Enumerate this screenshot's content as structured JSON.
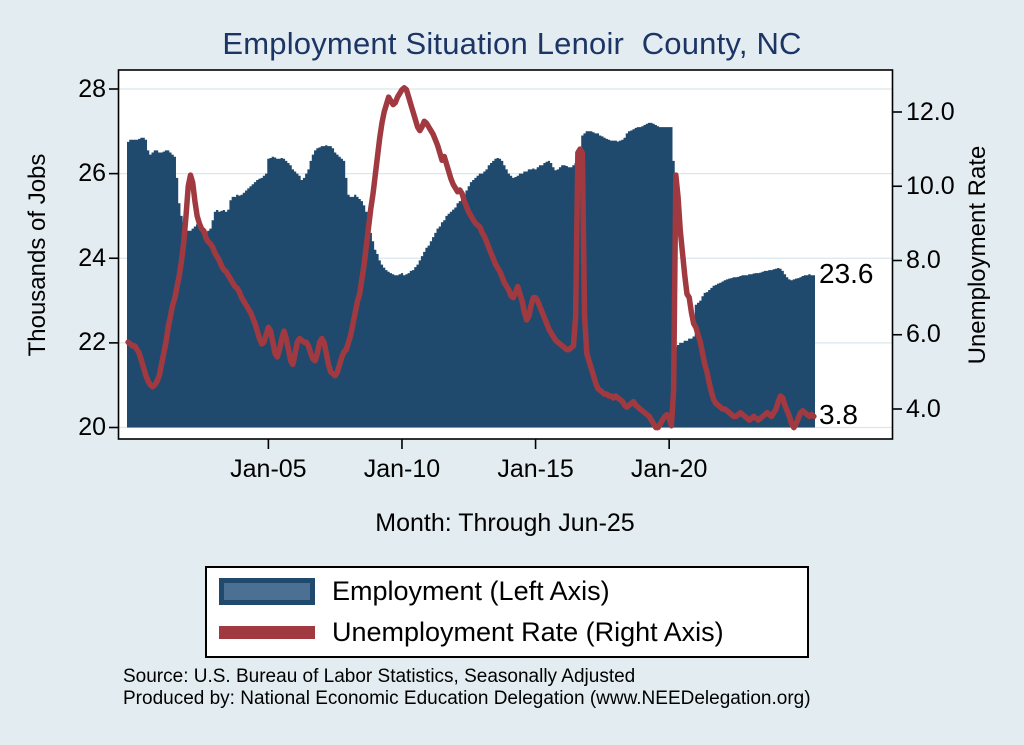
{
  "title": "Employment Situation Lenoir  County, NC",
  "month_caption": "Month: Through Jun-25",
  "end_labels": {
    "employment": "23.6",
    "unemployment": "3.8"
  },
  "legend": {
    "items": [
      {
        "label": "Employment (Left Axis)",
        "swatch": "bar"
      },
      {
        "label": "Unemployment Rate (Right Axis)",
        "swatch": "line"
      }
    ]
  },
  "source_line1": "Source: U.S. Bureau of Labor Statistics, Seasonally Adjusted",
  "source_line2": "Produced by: National Economic Education Delegation (www.NEEDelegation.org)",
  "colors": {
    "background": "#E3EDF1",
    "plot_background": "#FFFFFF",
    "gridline": "#DAE7ED",
    "bar_fill": "#1F4A6E",
    "bar_swatch_inner": "#4C7094",
    "line_stroke": "#A03A40",
    "title_text": "#1C3565",
    "axis_text": "#000000"
  },
  "chart_data": {
    "type": "combo",
    "frequency": "monthly",
    "x_start": "Oct-1999",
    "x_end": "Jun-25",
    "left_axis": {
      "title": "Thousands of Jobs",
      "range": [
        20,
        28
      ],
      "ticks": [
        {
          "v": 20,
          "label": "20"
        },
        {
          "v": 22,
          "label": "22"
        },
        {
          "v": 24,
          "label": "24"
        },
        {
          "v": 26,
          "label": "26"
        },
        {
          "v": 28,
          "label": "28"
        }
      ]
    },
    "right_axis": {
      "title": "Unemployment Rate",
      "range": [
        4,
        12
      ],
      "ticks": [
        {
          "v": 4,
          "label": "4.0"
        },
        {
          "v": 6,
          "label": "6.0"
        },
        {
          "v": 8,
          "label": "8.0"
        },
        {
          "v": 10,
          "label": "10.0"
        },
        {
          "v": 12,
          "label": "12.0"
        }
      ]
    },
    "x_axis": {
      "ticks": [
        {
          "index": 63,
          "label": "Jan-05"
        },
        {
          "index": 123,
          "label": "Jan-10"
        },
        {
          "index": 183,
          "label": "Jan-15"
        },
        {
          "index": 243,
          "label": "Jan-20"
        }
      ]
    },
    "series": [
      {
        "name": "Employment (Left Axis)",
        "type": "bar",
        "axis": "left",
        "values": [
          26.75,
          26.8,
          26.8,
          26.8,
          26.8,
          26.82,
          26.85,
          26.85,
          26.8,
          26.55,
          26.45,
          26.5,
          26.55,
          26.55,
          26.5,
          26.5,
          26.52,
          26.55,
          26.55,
          26.5,
          26.45,
          26.4,
          25.9,
          25.3,
          25.0,
          24.85,
          24.7,
          24.65,
          24.65,
          24.7,
          24.75,
          24.8,
          24.75,
          24.7,
          24.62,
          24.6,
          24.65,
          24.7,
          24.9,
          25.1,
          25.14,
          25.1,
          25.12,
          25.14,
          25.1,
          25.15,
          25.37,
          25.45,
          25.45,
          25.5,
          25.48,
          25.5,
          25.55,
          25.6,
          25.65,
          25.7,
          25.75,
          25.8,
          25.85,
          25.88,
          25.9,
          25.95,
          26.0,
          26.35,
          26.37,
          26.4,
          26.38,
          26.35,
          26.35,
          26.37,
          26.35,
          26.3,
          26.25,
          26.2,
          26.1,
          26.05,
          26.0,
          25.95,
          25.85,
          25.9,
          26.0,
          26.1,
          26.3,
          26.45,
          26.55,
          26.6,
          26.62,
          26.65,
          26.65,
          26.67,
          26.65,
          26.65,
          26.6,
          26.5,
          26.45,
          26.4,
          26.35,
          26.3,
          25.9,
          25.5,
          25.45,
          25.45,
          25.5,
          25.45,
          25.4,
          25.35,
          25.25,
          25.1,
          24.9,
          24.6,
          24.4,
          24.2,
          24.1,
          23.95,
          23.85,
          23.78,
          23.72,
          23.68,
          23.65,
          23.62,
          23.6,
          23.6,
          23.62,
          23.65,
          23.6,
          23.62,
          23.65,
          23.7,
          23.72,
          23.79,
          23.85,
          23.95,
          24.05,
          24.15,
          24.25,
          24.3,
          24.4,
          24.5,
          24.6,
          24.7,
          24.75,
          24.85,
          24.9,
          25.0,
          25.05,
          25.1,
          25.15,
          25.2,
          25.3,
          25.35,
          25.45,
          25.5,
          25.6,
          25.7,
          25.8,
          25.85,
          25.9,
          25.95,
          26.0,
          26.0,
          26.05,
          26.1,
          26.2,
          26.25,
          26.3,
          26.35,
          26.37,
          26.35,
          26.3,
          26.2,
          26.1,
          26.0,
          25.95,
          25.9,
          25.92,
          25.95,
          26.0,
          26.0,
          26.05,
          26.05,
          26.1,
          26.1,
          26.12,
          26.1,
          26.15,
          26.2,
          26.2,
          26.25,
          26.28,
          26.3,
          26.25,
          26.15,
          26.08,
          26.1,
          26.15,
          26.2,
          26.2,
          26.18,
          26.15,
          26.15,
          26.2,
          26.25,
          26.3,
          26.5,
          26.9,
          26.95,
          27.0,
          27.0,
          27.0,
          26.98,
          26.95,
          26.95,
          26.9,
          26.88,
          26.85,
          26.82,
          26.8,
          26.78,
          26.78,
          26.78,
          26.76,
          26.78,
          26.8,
          26.85,
          26.95,
          27.0,
          27.02,
          27.05,
          27.08,
          27.1,
          27.1,
          27.12,
          27.15,
          27.18,
          27.2,
          27.2,
          27.18,
          27.15,
          27.12,
          27.1,
          27.1,
          27.1,
          27.1,
          27.1,
          27.1,
          26.3,
          21.9,
          21.95,
          22.0,
          22.0,
          22.05,
          22.05,
          22.1,
          22.1,
          22.15,
          22.9,
          22.95,
          23.0,
          23.1,
          23.18,
          23.2,
          23.25,
          23.3,
          23.35,
          23.37,
          23.4,
          23.42,
          23.45,
          23.48,
          23.5,
          23.52,
          23.53,
          23.55,
          23.55,
          23.56,
          23.58,
          23.6,
          23.6,
          23.6,
          23.62,
          23.62,
          23.64,
          23.65,
          23.65,
          23.66,
          23.68,
          23.7,
          23.7,
          23.72,
          23.72,
          23.74,
          23.75,
          23.77,
          23.75,
          23.7,
          23.62,
          23.55,
          23.5,
          23.48,
          23.5,
          23.52,
          23.53,
          23.55,
          23.58,
          23.6,
          23.6,
          23.62,
          23.6,
          23.6
        ]
      },
      {
        "name": "Unemployment Rate (Right Axis)",
        "type": "line",
        "axis": "right",
        "values": [
          5.8,
          5.75,
          5.7,
          5.7,
          5.6,
          5.5,
          5.3,
          5.1,
          4.9,
          4.75,
          4.65,
          4.6,
          4.65,
          4.75,
          4.9,
          5.2,
          5.5,
          5.8,
          6.2,
          6.5,
          6.8,
          7.0,
          7.3,
          7.6,
          8.0,
          8.5,
          9.2,
          10.0,
          10.3,
          10.1,
          9.6,
          9.2,
          9.0,
          8.85,
          8.8,
          8.6,
          8.5,
          8.45,
          8.35,
          8.2,
          8.1,
          8.0,
          7.85,
          7.75,
          7.7,
          7.6,
          7.5,
          7.4,
          7.3,
          7.25,
          7.15,
          7.0,
          6.9,
          6.8,
          6.7,
          6.6,
          6.45,
          6.3,
          6.1,
          5.9,
          5.75,
          5.8,
          6.0,
          6.2,
          6.1,
          5.8,
          5.5,
          5.4,
          5.6,
          5.9,
          6.1,
          5.9,
          5.6,
          5.3,
          5.2,
          5.5,
          5.8,
          5.9,
          5.85,
          5.8,
          5.8,
          5.7,
          5.5,
          5.35,
          5.3,
          5.5,
          5.8,
          5.9,
          5.8,
          5.5,
          5.2,
          5.0,
          4.95,
          4.9,
          5.0,
          5.2,
          5.4,
          5.55,
          5.6,
          5.8,
          6.0,
          6.3,
          6.6,
          6.9,
          7.1,
          7.5,
          7.9,
          8.4,
          8.9,
          9.4,
          9.8,
          10.3,
          10.8,
          11.3,
          11.7,
          12.0,
          12.2,
          12.4,
          12.3,
          12.2,
          12.25,
          12.4,
          12.5,
          12.6,
          12.65,
          12.6,
          12.4,
          12.2,
          12.0,
          11.8,
          11.6,
          11.5,
          11.6,
          11.75,
          11.7,
          11.6,
          11.5,
          11.4,
          11.25,
          11.1,
          10.9,
          10.7,
          10.8,
          10.6,
          10.4,
          10.2,
          10.05,
          9.95,
          9.85,
          9.9,
          9.8,
          9.6,
          9.45,
          9.3,
          9.2,
          9.1,
          9.0,
          8.95,
          8.9,
          8.75,
          8.65,
          8.5,
          8.35,
          8.2,
          8.05,
          7.9,
          7.8,
          7.7,
          7.55,
          7.4,
          7.3,
          7.2,
          7.05,
          7.0,
          7.15,
          7.3,
          7.1,
          6.9,
          6.6,
          6.4,
          6.5,
          6.8,
          7.0,
          7.0,
          6.9,
          6.75,
          6.6,
          6.45,
          6.3,
          6.15,
          6.05,
          5.95,
          5.85,
          5.8,
          5.75,
          5.7,
          5.65,
          5.6,
          5.6,
          5.65,
          5.7,
          6.5,
          10.9,
          11.0,
          10.9,
          6.5,
          5.5,
          5.3,
          5.1,
          4.9,
          4.7,
          4.55,
          4.5,
          4.45,
          4.4,
          4.4,
          4.35,
          4.35,
          4.3,
          4.35,
          4.3,
          4.25,
          4.2,
          4.1,
          4.05,
          4.1,
          4.15,
          4.2,
          4.1,
          4.05,
          4.0,
          3.95,
          3.9,
          3.85,
          3.8,
          3.7,
          3.6,
          3.5,
          3.5,
          3.6,
          3.7,
          3.8,
          3.85,
          3.75,
          3.55,
          4.5,
          10.3,
          9.7,
          8.8,
          8.2,
          7.6,
          7.1,
          7.0,
          6.6,
          6.3,
          6.2,
          6.0,
          5.8,
          5.5,
          5.2,
          5.0,
          4.7,
          4.45,
          4.25,
          4.15,
          4.1,
          4.05,
          4.0,
          4.0,
          3.95,
          3.9,
          3.85,
          3.8,
          3.8,
          3.85,
          3.9,
          3.85,
          3.8,
          3.75,
          3.7,
          3.75,
          3.8,
          3.75,
          3.7,
          3.75,
          3.8,
          3.85,
          3.9,
          3.85,
          3.8,
          3.9,
          4.0,
          4.2,
          4.35,
          4.3,
          4.1,
          3.95,
          3.8,
          3.6,
          3.5,
          3.6,
          3.75,
          3.9,
          3.95,
          3.9,
          3.85,
          3.8,
          3.85,
          3.8
        ]
      }
    ]
  }
}
